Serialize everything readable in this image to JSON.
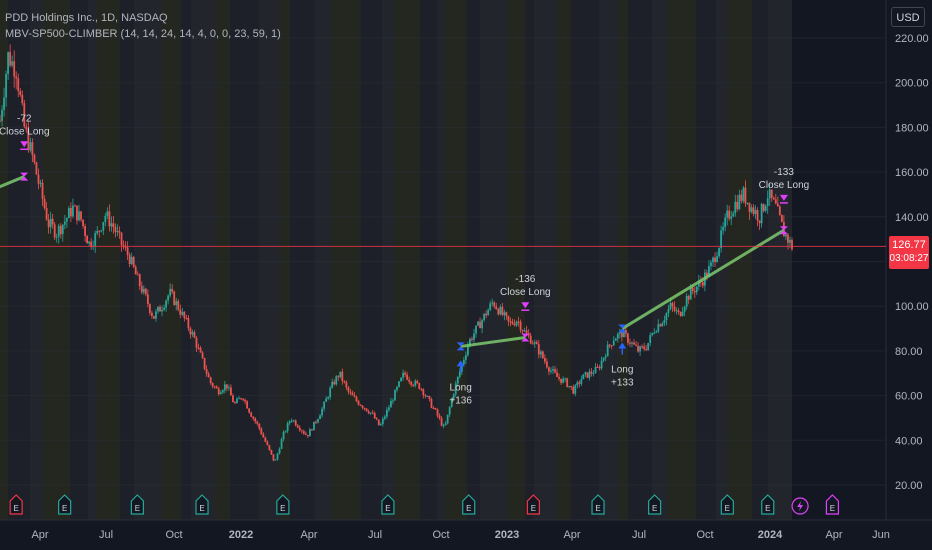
{
  "header": {
    "symbol_line": "PDD Holdings Inc., 1D, NASDAQ",
    "indicator_line": "MBV-SP500-CLIMBER (14, 14, 24, 14, 4, 0, 0, 23, 59, 1)"
  },
  "currency_button": "USD",
  "last_price": {
    "value": "126.77",
    "countdown": "03:08:27",
    "price": 126.77
  },
  "colors": {
    "background": "#131722",
    "up_candle": "#26a69a",
    "down_candle": "#ef5350",
    "trade_line": "#7bc96f",
    "signal_magenta": "#e040fb",
    "signal_blue": "#2962ff",
    "price_line": "#f23645"
  },
  "chart_data": {
    "type": "candlestick",
    "symbol": "PDD",
    "interval": "1D",
    "y_axis_labels": [
      "220.00",
      "200.00",
      "180.00",
      "160.00",
      "140.00",
      "120.00",
      "100.00",
      "80.00",
      "60.00",
      "40.00",
      "20.00"
    ],
    "y_values": [
      220,
      200,
      180,
      160,
      140,
      120,
      100,
      80,
      60,
      40,
      20
    ],
    "ylim": [
      12,
      224
    ],
    "x_axis_labels": [
      "Apr",
      "Jul",
      "Oct",
      "2022",
      "Apr",
      "Jul",
      "Oct",
      "2023",
      "Apr",
      "Jul",
      "Oct",
      "2024",
      "Apr",
      "Jun"
    ],
    "price_path": [
      {
        "t": 0,
        "p": 183
      },
      {
        "t": 1,
        "p": 212
      },
      {
        "t": 2,
        "p": 206
      },
      {
        "t": 3,
        "p": 180
      },
      {
        "t": 4,
        "p": 167
      },
      {
        "t": 5,
        "p": 152
      },
      {
        "t": 6,
        "p": 137
      },
      {
        "t": 7,
        "p": 133
      },
      {
        "t": 8,
        "p": 138
      },
      {
        "t": 9,
        "p": 144
      },
      {
        "t": 10,
        "p": 139
      },
      {
        "t": 11,
        "p": 128
      },
      {
        "t": 12,
        "p": 132
      },
      {
        "t": 13,
        "p": 141
      },
      {
        "t": 14,
        "p": 136
      },
      {
        "t": 15,
        "p": 128
      },
      {
        "t": 16,
        "p": 122
      },
      {
        "t": 17,
        "p": 112
      },
      {
        "t": 18,
        "p": 104
      },
      {
        "t": 19,
        "p": 95
      },
      {
        "t": 20,
        "p": 100
      },
      {
        "t": 21,
        "p": 106
      },
      {
        "t": 22,
        "p": 100
      },
      {
        "t": 23,
        "p": 93
      },
      {
        "t": 24,
        "p": 86
      },
      {
        "t": 25,
        "p": 76
      },
      {
        "t": 26,
        "p": 66
      },
      {
        "t": 27,
        "p": 62
      },
      {
        "t": 28,
        "p": 65
      },
      {
        "t": 29,
        "p": 56
      },
      {
        "t": 30,
        "p": 60
      },
      {
        "t": 31,
        "p": 52
      },
      {
        "t": 32,
        "p": 46
      },
      {
        "t": 33,
        "p": 38
      },
      {
        "t": 34,
        "p": 30
      },
      {
        "t": 35,
        "p": 42
      },
      {
        "t": 36,
        "p": 50
      },
      {
        "t": 37,
        "p": 46
      },
      {
        "t": 38,
        "p": 42
      },
      {
        "t": 39,
        "p": 48
      },
      {
        "t": 40,
        "p": 55
      },
      {
        "t": 41,
        "p": 64
      },
      {
        "t": 42,
        "p": 70
      },
      {
        "t": 43,
        "p": 62
      },
      {
        "t": 44,
        "p": 58
      },
      {
        "t": 45,
        "p": 55
      },
      {
        "t": 46,
        "p": 52
      },
      {
        "t": 47,
        "p": 46
      },
      {
        "t": 48,
        "p": 54
      },
      {
        "t": 49,
        "p": 62
      },
      {
        "t": 50,
        "p": 70
      },
      {
        "t": 51,
        "p": 66
      },
      {
        "t": 52,
        "p": 64
      },
      {
        "t": 53,
        "p": 58
      },
      {
        "t": 54,
        "p": 52
      },
      {
        "t": 55,
        "p": 45
      },
      {
        "t": 56,
        "p": 60
      },
      {
        "t": 57,
        "p": 72
      },
      {
        "t": 58,
        "p": 84
      },
      {
        "t": 59,
        "p": 90
      },
      {
        "t": 60,
        "p": 96
      },
      {
        "t": 61,
        "p": 102
      },
      {
        "t": 62,
        "p": 97
      },
      {
        "t": 63,
        "p": 92
      },
      {
        "t": 64,
        "p": 94
      },
      {
        "t": 65,
        "p": 88
      },
      {
        "t": 66,
        "p": 84
      },
      {
        "t": 67,
        "p": 78
      },
      {
        "t": 68,
        "p": 72
      },
      {
        "t": 69,
        "p": 68
      },
      {
        "t": 70,
        "p": 66
      },
      {
        "t": 71,
        "p": 62
      },
      {
        "t": 72,
        "p": 68
      },
      {
        "t": 73,
        "p": 70
      },
      {
        "t": 74,
        "p": 72
      },
      {
        "t": 75,
        "p": 80
      },
      {
        "t": 76,
        "p": 86
      },
      {
        "t": 77,
        "p": 88
      },
      {
        "t": 78,
        "p": 84
      },
      {
        "t": 79,
        "p": 80
      },
      {
        "t": 80,
        "p": 82
      },
      {
        "t": 81,
        "p": 90
      },
      {
        "t": 82,
        "p": 94
      },
      {
        "t": 83,
        "p": 100
      },
      {
        "t": 84,
        "p": 96
      },
      {
        "t": 85,
        "p": 104
      },
      {
        "t": 86,
        "p": 108
      },
      {
        "t": 87,
        "p": 112
      },
      {
        "t": 88,
        "p": 118
      },
      {
        "t": 89,
        "p": 128
      },
      {
        "t": 90,
        "p": 140
      },
      {
        "t": 91,
        "p": 146
      },
      {
        "t": 92,
        "p": 150
      },
      {
        "t": 93,
        "p": 144
      },
      {
        "t": 94,
        "p": 140
      },
      {
        "t": 95,
        "p": 150
      },
      {
        "t": 96,
        "p": 144
      },
      {
        "t": 97,
        "p": 133
      },
      {
        "t": 98,
        "p": 126.77
      }
    ],
    "trades": [
      {
        "entry_t": -3,
        "exit_t": 3,
        "entry_price": 149,
        "exit_price": 158,
        "exit_label": "Close Long",
        "exit_value": "-72"
      },
      {
        "entry_t": 57,
        "exit_t": 65,
        "entry_price": 82,
        "exit_price": 86,
        "entry_label": "Long",
        "entry_value": "+136",
        "exit_label": "Close Long",
        "exit_value": "-136"
      },
      {
        "entry_t": 77,
        "exit_t": 97,
        "entry_price": 90,
        "exit_price": 134,
        "entry_label": "Long",
        "entry_value": "+133",
        "exit_label": "Close Long",
        "exit_value": "-133"
      }
    ],
    "earnings_markers": [
      {
        "t": 2,
        "kind": "red"
      },
      {
        "t": 8,
        "kind": "teal"
      },
      {
        "t": 17,
        "kind": "teal"
      },
      {
        "t": 25,
        "kind": "teal"
      },
      {
        "t": 35,
        "kind": "teal"
      },
      {
        "t": 48,
        "kind": "teal"
      },
      {
        "t": 58,
        "kind": "teal"
      },
      {
        "t": 66,
        "kind": "red"
      },
      {
        "t": 74,
        "kind": "teal"
      },
      {
        "t": 81,
        "kind": "teal"
      },
      {
        "t": 90,
        "kind": "teal"
      },
      {
        "t": 95,
        "kind": "teal"
      },
      {
        "t": 99,
        "kind": "lightning"
      },
      {
        "t": 103,
        "kind": "magenta"
      }
    ],
    "earnings_label": "E"
  }
}
